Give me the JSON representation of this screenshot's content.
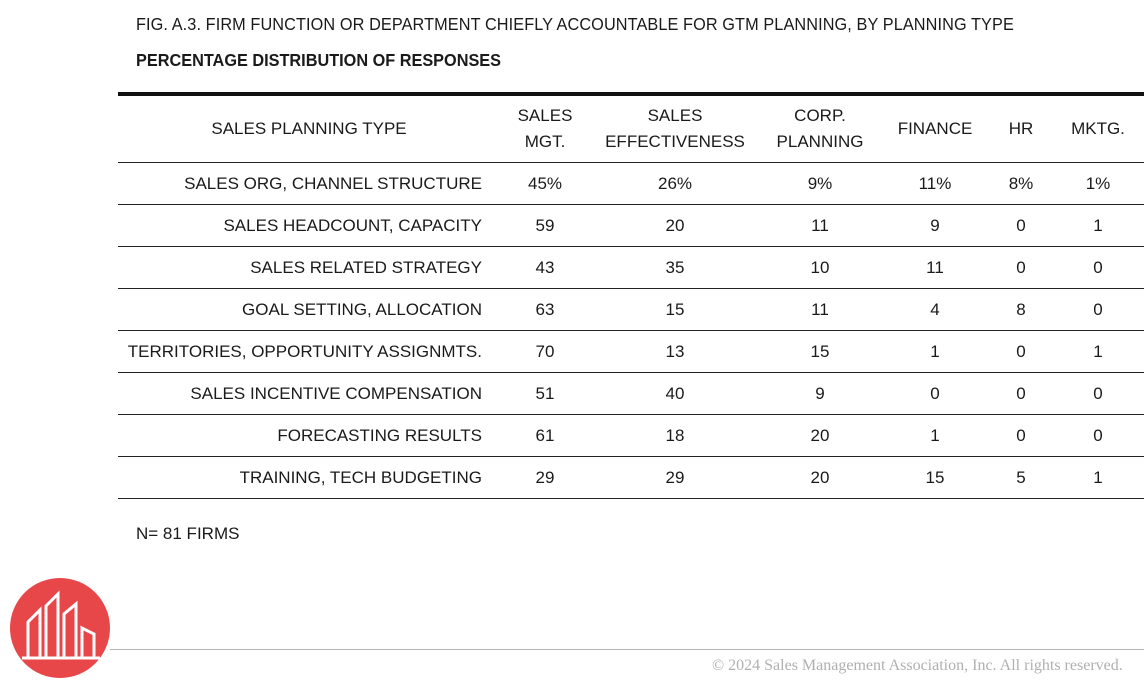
{
  "figure": {
    "title": "FIG. A.3. FIRM FUNCTION OR DEPARTMENT CHIEFLY ACCOUNTABLE FOR GTM PLANNING, BY PLANNING TYPE",
    "subtitle": "PERCENTAGE DISTRIBUTION OF RESPONSES"
  },
  "table": {
    "headers": [
      [
        "SALES PLANNING TYPE"
      ],
      [
        "SALES",
        "MGT."
      ],
      [
        "SALES",
        "EFFECTIVENESS"
      ],
      [
        "CORP.",
        "PLANNING"
      ],
      [
        "FINANCE"
      ],
      [
        "HR"
      ],
      [
        "MKTG."
      ]
    ],
    "rows": [
      [
        "SALES ORG, CHANNEL STRUCTURE",
        "45%",
        "26%",
        "9%",
        "11%",
        "8%",
        "1%"
      ],
      [
        "SALES HEADCOUNT, CAPACITY",
        "59",
        "20",
        "11",
        "9",
        "0",
        "1"
      ],
      [
        "SALES RELATED STRATEGY",
        "43",
        "35",
        "10",
        "11",
        "0",
        "0"
      ],
      [
        "GOAL SETTING, ALLOCATION",
        "63",
        "15",
        "11",
        "4",
        "8",
        "0"
      ],
      [
        "TERRITORIES, OPPORTUNITY ASSIGNMTS.",
        "70",
        "13",
        "15",
        "1",
        "0",
        "1"
      ],
      [
        "SALES INCENTIVE COMPENSATION",
        "51",
        "40",
        "9",
        "0",
        "0",
        "0"
      ],
      [
        "FORECASTING RESULTS",
        "61",
        "18",
        "20",
        "1",
        "0",
        "0"
      ],
      [
        "TRAINING, TECH BUDGETING",
        "29",
        "29",
        "20",
        "15",
        "5",
        "1"
      ]
    ]
  },
  "note": "N= 81 FIRMS",
  "footer": {
    "copyright": "© 2024 Sales Management Association, Inc. All rights reserved."
  },
  "colors": {
    "logo_red": "#e8474a",
    "rule": "#111111",
    "footer_text": "#b0b0b0"
  }
}
